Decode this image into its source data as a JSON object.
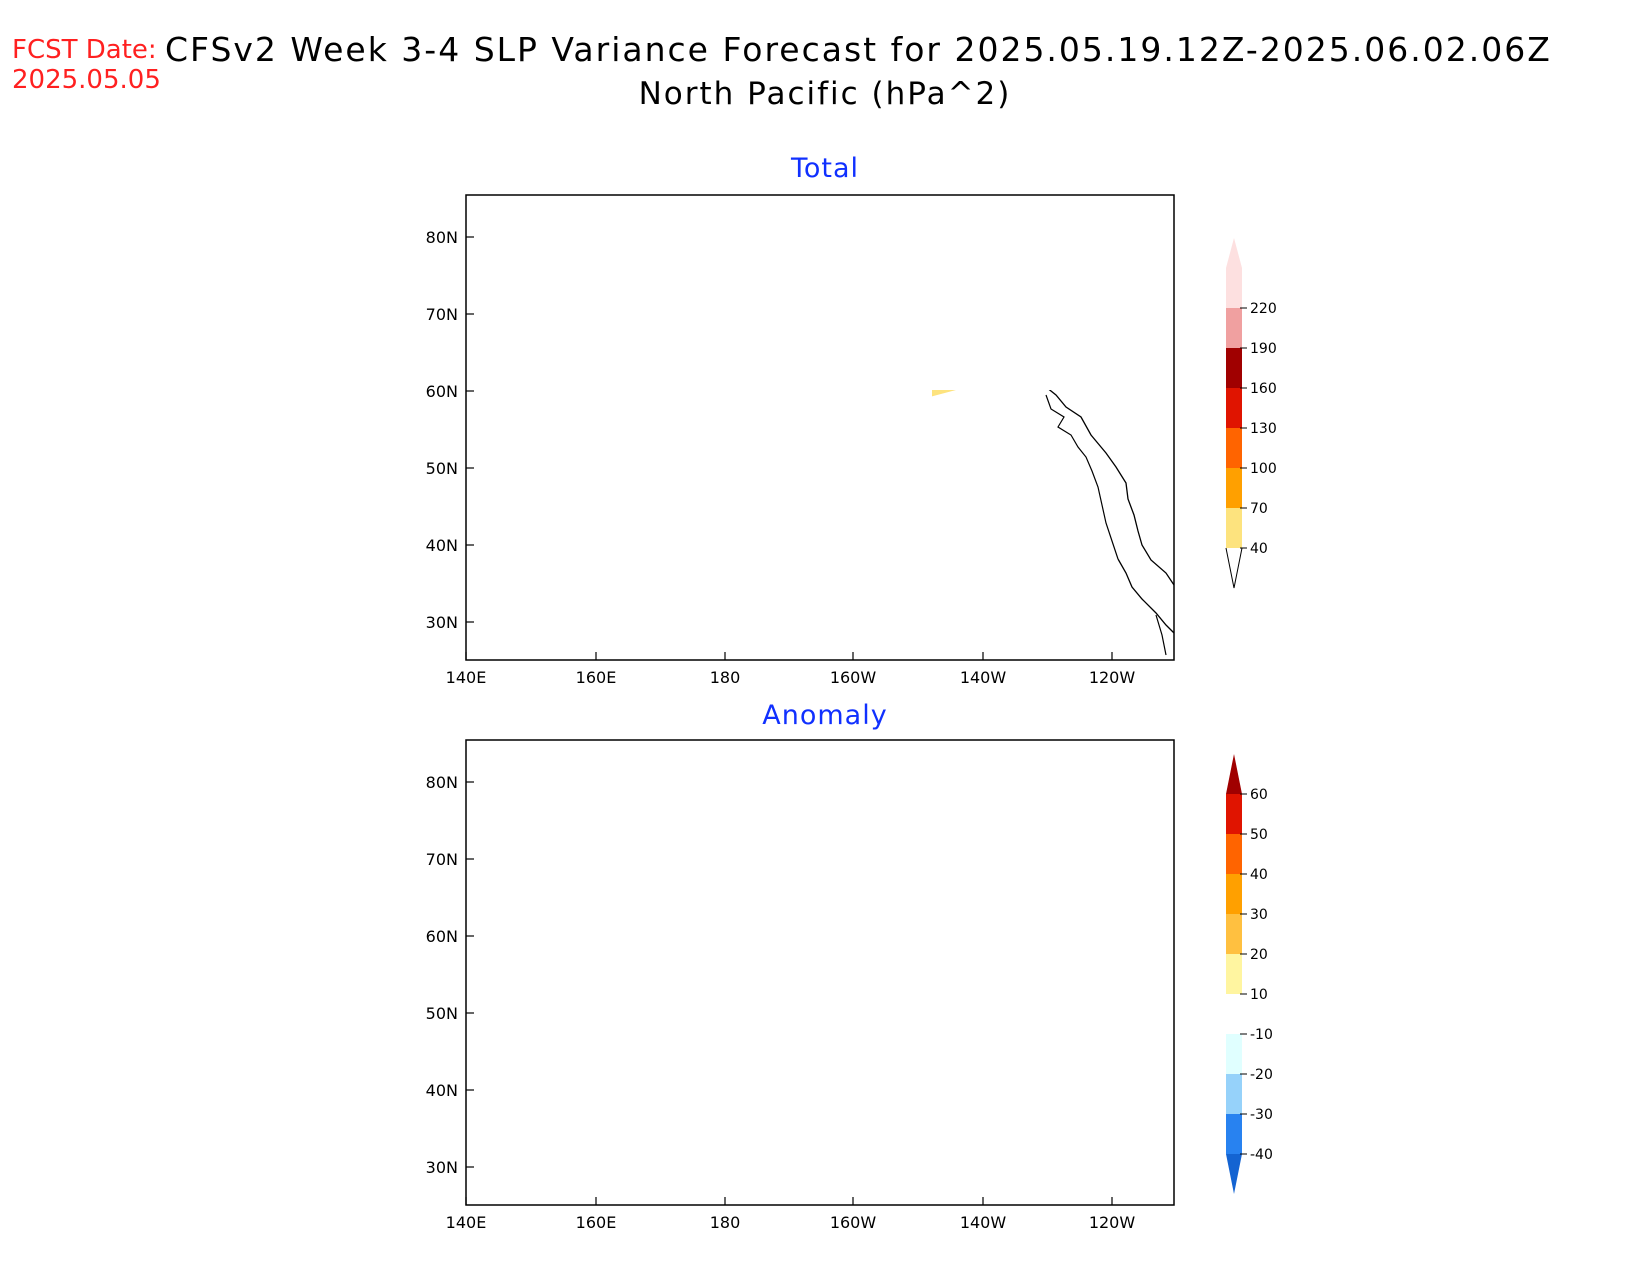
{
  "header": {
    "fcst_label": "FCST Date:",
    "fcst_date": "2025.05.05",
    "title_line1": "CFSv2 Week 3-4 SLP Variance Forecast for 2025.05.19.12Z-2025.06.02.06Z",
    "title_line2": "North Pacific (hPa^2)"
  },
  "axes": {
    "lat_ticks": [
      "80N",
      "70N",
      "60N",
      "50N",
      "40N",
      "30N"
    ],
    "lon_ticks": [
      "140E",
      "160E",
      "180",
      "160W",
      "140W",
      "120W"
    ]
  },
  "panels": [
    {
      "title": "Total",
      "colorbar": {
        "labels": [
          "40",
          "70",
          "100",
          "130",
          "160",
          "190",
          "220"
        ],
        "colors": [
          "#fde37e",
          "#ffa000",
          "#ff6400",
          "#e01400",
          "#a00000",
          "#f0a0a0",
          "#fde0e0"
        ]
      }
    },
    {
      "title": "Anomaly",
      "colorbar": {
        "labels": [
          "60",
          "50",
          "40",
          "30",
          "20",
          "10",
          "-10",
          "-20",
          "-30",
          "-40"
        ],
        "colors": [
          "#a00000",
          "#e01400",
          "#ff6400",
          "#ffa000",
          "#ffc040",
          "#fff5a0",
          "#ffffff",
          "#e0ffff",
          "#96d2fa",
          "#2882f0",
          "#1464d2"
        ]
      }
    }
  ]
}
